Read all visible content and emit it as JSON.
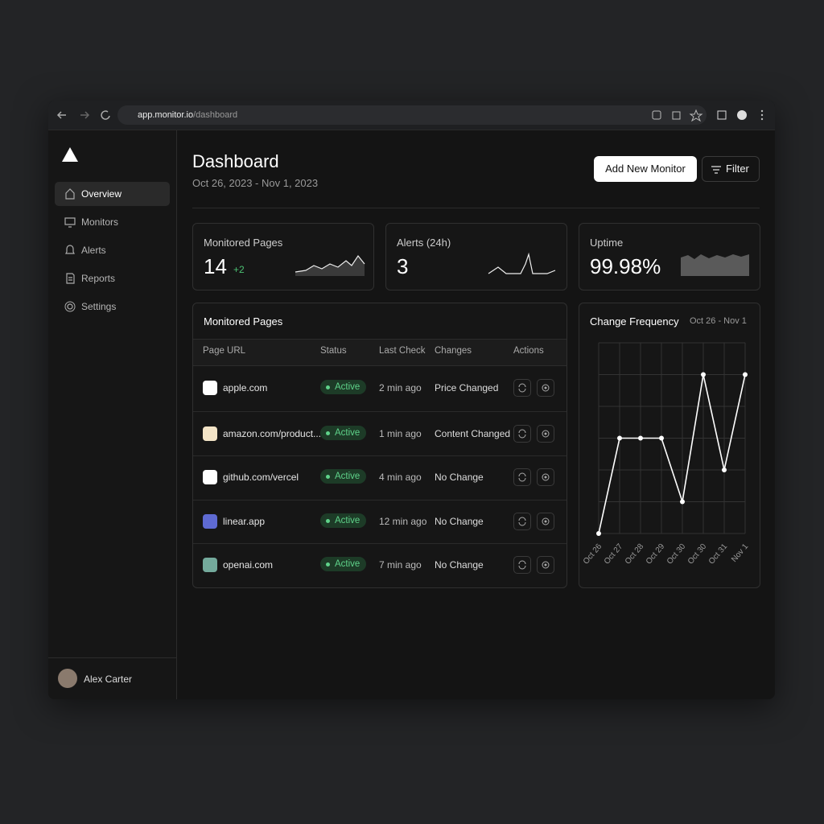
{
  "browser": {
    "url_host": "app.monitor.io",
    "url_path": "/dashboard"
  },
  "sidebar": {
    "nav": [
      "Overview",
      "Monitors",
      "Alerts",
      "Reports",
      "Settings"
    ],
    "user": "Alex Carter"
  },
  "header": {
    "title": "Dashboard",
    "date_range": "Oct 26, 2023 - Nov 1, 2023",
    "buttons": [
      "Add New Monitor",
      "Filter"
    ]
  },
  "stats": [
    {
      "label": "Monitored Pages",
      "value": "14",
      "delta": "+2"
    },
    {
      "label": "Alerts (24h)",
      "value": "3"
    },
    {
      "label": "Uptime",
      "value": "99.98%"
    }
  ],
  "table": {
    "title": "Monitored Pages",
    "columns": [
      "Page URL",
      "Status",
      "Last Check",
      "Changes",
      "Actions"
    ],
    "rows": [
      [
        "apple.com",
        "Active",
        "2 min ago",
        "Price Changed"
      ],
      [
        "amazon.com/product...",
        "Active",
        "1 min ago",
        "Content Changed"
      ],
      [
        "github.com/vercel",
        "Active",
        "4 min ago",
        "No Change"
      ],
      [
        "linear.app",
        "Active",
        "12 min ago",
        "No Change"
      ],
      [
        "openai.com",
        "Active",
        "7 min ago",
        "No Change"
      ]
    ]
  },
  "chart_data": {
    "type": "line",
    "title": "Change Frequency",
    "subtitle": "Oct 26 - Nov 1",
    "categories": [
      "Oct 26",
      "Oct 27",
      "Oct 28",
      "Oct 29",
      "Oct 30",
      "Oct 30",
      "Oct 31",
      "Nov 1"
    ],
    "values": [
      0,
      3,
      3,
      3,
      1,
      5,
      2,
      5
    ],
    "ylim": [
      0,
      6
    ],
    "color": "#ffffff"
  }
}
